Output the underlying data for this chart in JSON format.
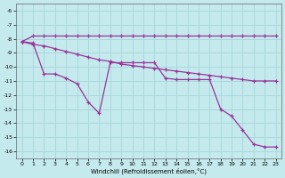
{
  "xlabel": "Windchill (Refroidissement éolien,°C)",
  "bg_color": "#c5eaed",
  "grid_color": "#aad8db",
  "line_color": "#993399",
  "ylim": [
    -16.5,
    -5.5
  ],
  "xlim": [
    -0.5,
    23.5
  ],
  "yticks": [
    -6,
    -7,
    -8,
    -9,
    -10,
    -11,
    -12,
    -13,
    -14,
    -15,
    -16
  ],
  "xticks": [
    0,
    1,
    2,
    3,
    4,
    5,
    6,
    7,
    8,
    9,
    10,
    11,
    12,
    13,
    14,
    15,
    16,
    17,
    18,
    19,
    20,
    21,
    22,
    23
  ],
  "series": [
    {
      "x": [
        0,
        1,
        2,
        3,
        4,
        5,
        6,
        7,
        8,
        9,
        10,
        11,
        12,
        13,
        14,
        15,
        16,
        17,
        18,
        19,
        20,
        21,
        22,
        23
      ],
      "y": [
        -8.2,
        -7.8,
        -7.8,
        -7.8,
        -7.8,
        -7.8,
        -7.8,
        -7.8,
        -7.8,
        -7.8,
        -7.8,
        -7.8,
        -7.8,
        -7.8,
        -7.8,
        -7.8,
        -7.8,
        -7.8,
        -7.8,
        -7.8,
        -7.8,
        -7.8,
        -7.8,
        -7.8
      ]
    },
    {
      "x": [
        0,
        1,
        2,
        3,
        4,
        5,
        6,
        7,
        8,
        9,
        10,
        11,
        12,
        13,
        14,
        15,
        16,
        17,
        18,
        19,
        20,
        21,
        22,
        23
      ],
      "y": [
        -8.2,
        -8.4,
        -8.5,
        -8.7,
        -8.9,
        -9.1,
        -9.3,
        -9.5,
        -9.6,
        -9.8,
        -9.9,
        -10.0,
        -10.1,
        -10.2,
        -10.3,
        -10.4,
        -10.5,
        -10.6,
        -10.7,
        -10.8,
        -10.9,
        -11.0,
        -11.0,
        -11.0
      ]
    },
    {
      "x": [
        0,
        1,
        2,
        3,
        4,
        5,
        6,
        7,
        8,
        9,
        10,
        11,
        12,
        13,
        14,
        15,
        16,
        17,
        18,
        19,
        20,
        21,
        22,
        23
      ],
      "y": [
        -8.2,
        -8.3,
        -10.5,
        -10.5,
        -10.8,
        -11.2,
        -12.5,
        -13.3,
        -9.7,
        -9.7,
        -9.7,
        -9.7,
        -9.7,
        -10.8,
        -10.9,
        -10.9,
        -10.9,
        -10.9,
        -13.0,
        -13.5,
        -14.5,
        -15.5,
        -15.7,
        -15.7
      ]
    }
  ]
}
